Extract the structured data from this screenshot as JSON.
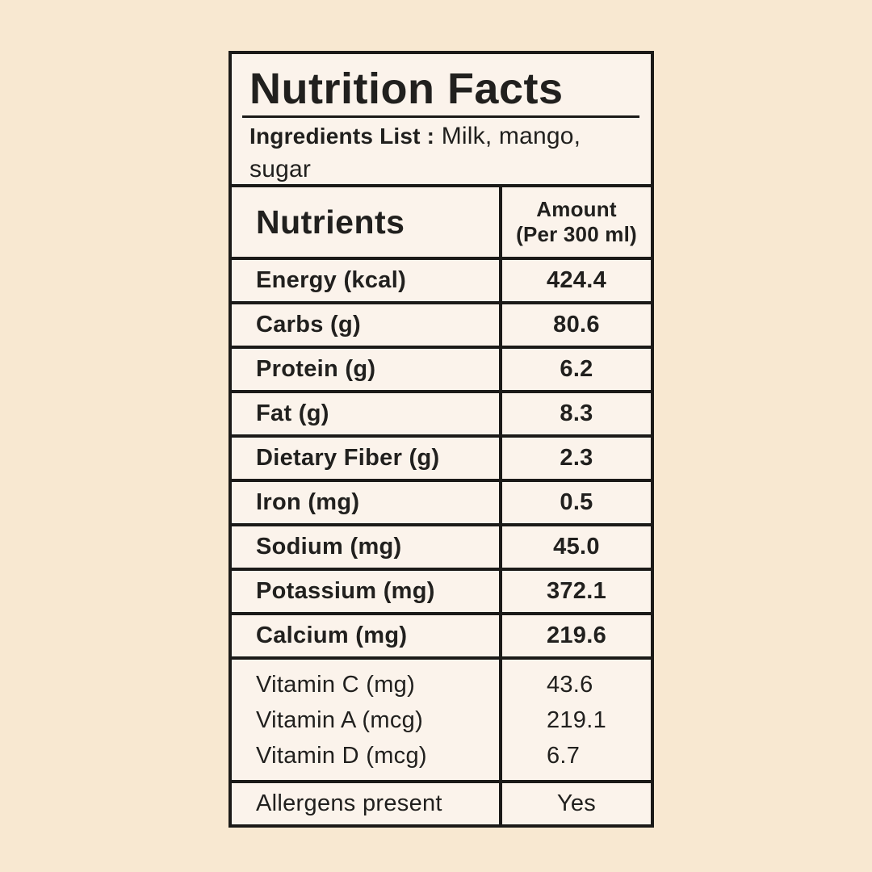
{
  "theme": {
    "page_bg": "#f8e8d1",
    "card_bg": "#fbf3eb",
    "line_color": "#1b1a18",
    "text_color": "#21201e"
  },
  "header": {
    "title": "Nutrition Facts",
    "ingredients_label": "Ingredients List :",
    "ingredients_value": "Milk, mango, sugar"
  },
  "table": {
    "header": {
      "nutrient": "Nutrients",
      "amount_line1": "Amount",
      "amount_line2": "(Per 300 ml)"
    },
    "rows": [
      {
        "label": "Energy (kcal)",
        "value": "424.4"
      },
      {
        "label": "Carbs (g)",
        "value": "80.6"
      },
      {
        "label": "Protein (g)",
        "value": "6.2"
      },
      {
        "label": "Fat (g)",
        "value": "8.3"
      },
      {
        "label": "Dietary Fiber (g)",
        "value": "2.3"
      },
      {
        "label": "Iron (mg)",
        "value": "0.5"
      },
      {
        "label": "Sodium (mg)",
        "value": "45.0"
      },
      {
        "label": "Potassium (mg)",
        "value": "372.1"
      },
      {
        "label": "Calcium (mg)",
        "value": "219.6"
      }
    ],
    "vitamins": [
      {
        "label": "Vitamin C (mg)",
        "value": "43.6"
      },
      {
        "label": "Vitamin A (mcg)",
        "value": "219.1"
      },
      {
        "label": "Vitamin D (mcg)",
        "value": "6.7"
      }
    ],
    "allergens": {
      "label": "Allergens present",
      "value": "Yes"
    }
  }
}
